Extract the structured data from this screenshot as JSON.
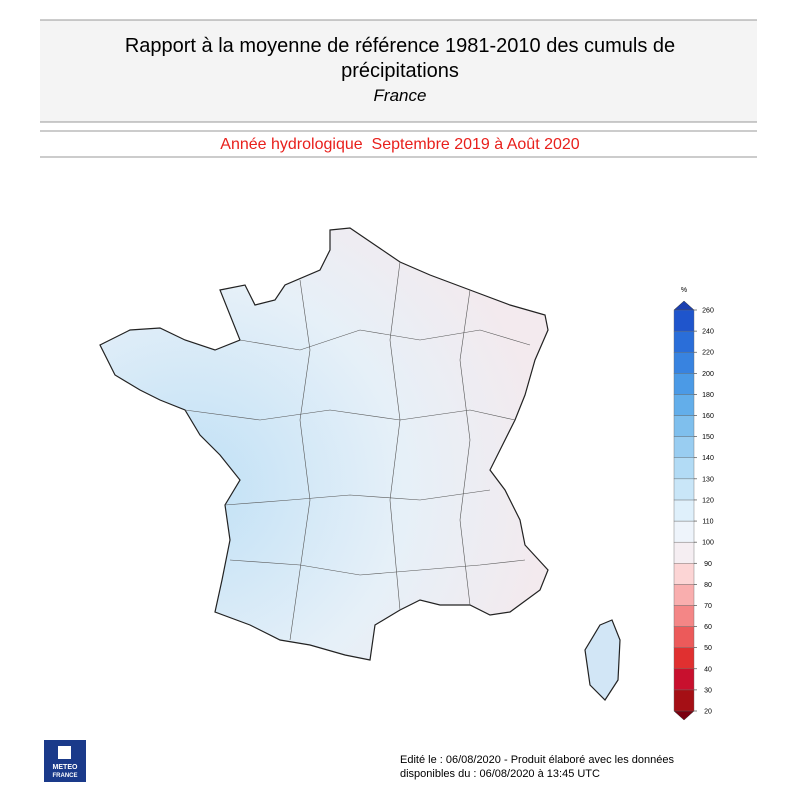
{
  "header": {
    "title_line1": "Rapport à la moyenne de référence 1981-2010 des cumuls de",
    "title_line2": "précipitations",
    "region": "France",
    "period": "Année hydrologique  Septembre 2019 à Août 2020"
  },
  "legend": {
    "unit": "%",
    "ticks": [
      20,
      30,
      40,
      50,
      60,
      70,
      80,
      90,
      100,
      110,
      120,
      130,
      140,
      150,
      160,
      180,
      200,
      220,
      240,
      260
    ],
    "colors": [
      "#a50f15",
      "#c8102e",
      "#e03030",
      "#ec5a5a",
      "#f48686",
      "#f9aeae",
      "#fcd5d5",
      "#f5eef2",
      "#eef4fb",
      "#dff0fb",
      "#c9e6f8",
      "#b2dbf5",
      "#99cdf1",
      "#7fbfed",
      "#63aeea",
      "#4b9ae6",
      "#3883e0",
      "#2a6ed9",
      "#1f55cc"
    ]
  },
  "footer": {
    "line1": "Edité le : 06/08/2020 - Produit élaboré avec les données",
    "line2": "disponibles du : 06/08/2020 à 13:45 UTC",
    "logo_line1": "METEO",
    "logo_line2": "FRANCE"
  }
}
